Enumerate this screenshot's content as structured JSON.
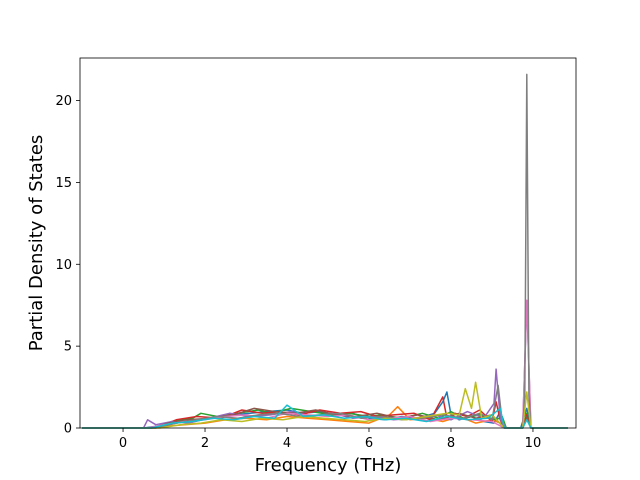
{
  "chart_data": {
    "type": "line",
    "title": "",
    "xlabel": "Frequency (THz)",
    "ylabel": "Partial Density of States",
    "xlim": [
      -1.05,
      11.05
    ],
    "ylim": [
      0,
      22.6
    ],
    "xticks": [
      0,
      2,
      4,
      6,
      8,
      10
    ],
    "yticks": [
      0,
      5,
      10,
      15,
      20
    ],
    "xtick_labels": [
      "0",
      "2",
      "4",
      "6",
      "8",
      "10"
    ],
    "ytick_labels": [
      "0",
      "5",
      "10",
      "15",
      "20"
    ],
    "grid": false,
    "legend": "none",
    "series": [
      {
        "color": "#1f77b4",
        "x": [
          -1.0,
          0.5,
          0.8,
          1.3,
          1.8,
          2.2,
          2.7,
          3.1,
          3.5,
          4.0,
          4.4,
          4.8,
          5.2,
          5.6,
          6.0,
          6.4,
          6.8,
          7.2,
          7.6,
          7.8,
          7.9,
          8.0,
          8.2,
          8.5,
          8.8,
          9.05,
          9.2,
          9.3,
          9.7,
          9.85,
          9.95,
          10.1,
          10.85
        ],
        "y": [
          0,
          0,
          0.1,
          0.3,
          0.5,
          0.6,
          0.8,
          0.9,
          1.0,
          1.1,
          0.9,
          1.0,
          0.8,
          0.9,
          0.6,
          0.5,
          0.7,
          0.6,
          0.9,
          1.6,
          2.2,
          0.8,
          0.5,
          0.7,
          0.4,
          0.3,
          1.0,
          0,
          0,
          1.2,
          0,
          0,
          0
        ]
      },
      {
        "color": "#ff7f0e",
        "x": [
          -1.0,
          0.6,
          1.0,
          1.5,
          2.0,
          2.5,
          3.0,
          3.5,
          4.0,
          4.5,
          5.0,
          5.5,
          6.0,
          6.5,
          6.7,
          7.0,
          7.4,
          7.8,
          8.2,
          8.6,
          9.0,
          9.2,
          9.3,
          9.75,
          9.85,
          9.95,
          10.85
        ],
        "y": [
          0,
          0,
          0.1,
          0.2,
          0.3,
          0.5,
          0.6,
          0.5,
          0.7,
          0.6,
          0.5,
          0.4,
          0.3,
          0.8,
          1.3,
          0.5,
          0.6,
          0.4,
          0.7,
          0.3,
          0.5,
          0.3,
          0,
          0,
          0.6,
          0,
          0
        ]
      },
      {
        "color": "#2ca02c",
        "x": [
          -1.0,
          0.7,
          1.2,
          1.7,
          1.9,
          2.3,
          2.8,
          3.3,
          3.6,
          4.1,
          4.6,
          5.1,
          5.5,
          6.0,
          6.3,
          6.8,
          7.3,
          7.7,
          8.0,
          8.3,
          8.7,
          9.1,
          9.25,
          9.35,
          9.75,
          9.85,
          9.95,
          10.85
        ],
        "y": [
          0,
          0,
          0.4,
          0.6,
          0.9,
          0.7,
          0.9,
          1.1,
          0.9,
          1.2,
          1.0,
          0.8,
          0.9,
          0.7,
          0.8,
          0.6,
          0.9,
          0.6,
          1.0,
          0.6,
          0.8,
          0.5,
          0.7,
          0,
          0,
          0.9,
          0,
          0
        ]
      },
      {
        "color": "#d62728",
        "x": [
          -1.0,
          0.8,
          1.3,
          1.8,
          2.4,
          2.9,
          3.4,
          3.8,
          4.3,
          4.8,
          5.3,
          5.8,
          6.2,
          6.6,
          7.1,
          7.5,
          7.8,
          7.9,
          8.1,
          8.4,
          8.7,
          9.0,
          9.1,
          9.2,
          9.3,
          9.75,
          9.85,
          9.95,
          10.85
        ],
        "y": [
          0,
          0,
          0.5,
          0.7,
          0.6,
          1.1,
          0.9,
          1.0,
          0.8,
          1.1,
          0.9,
          1.0,
          0.7,
          0.8,
          0.9,
          0.5,
          1.9,
          0.6,
          0.9,
          0.7,
          1.1,
          0.4,
          1.6,
          0.5,
          0,
          0,
          0.8,
          0,
          0
        ]
      },
      {
        "color": "#9467bd",
        "x": [
          -1.0,
          0.5,
          0.6,
          0.8,
          1.2,
          1.6,
          2.1,
          2.6,
          3.1,
          3.6,
          4.1,
          4.6,
          5.1,
          5.6,
          6.1,
          6.6,
          7.1,
          7.6,
          8.0,
          8.4,
          8.8,
          9.05,
          9.1,
          9.2,
          9.3,
          9.75,
          9.85,
          9.95,
          10.85
        ],
        "y": [
          0,
          0,
          0.5,
          0.2,
          0.4,
          0.3,
          0.6,
          0.9,
          0.7,
          0.8,
          1.0,
          0.7,
          0.9,
          0.6,
          0.7,
          0.5,
          0.6,
          0.8,
          0.5,
          1.0,
          0.6,
          1.5,
          3.6,
          0.6,
          0,
          0,
          7.7,
          0,
          0
        ]
      },
      {
        "color": "#8c564b",
        "x": [
          -1.0,
          0.7,
          1.1,
          1.6,
          2.1,
          2.7,
          3.2,
          3.7,
          4.2,
          4.7,
          5.2,
          5.7,
          6.2,
          6.7,
          7.2,
          7.7,
          8.2,
          8.6,
          9.0,
          9.3,
          9.75,
          9.85,
          9.95,
          10.85
        ],
        "y": [
          0,
          0,
          0.3,
          0.5,
          0.6,
          0.8,
          1.2,
          1.0,
          0.9,
          1.1,
          0.8,
          0.7,
          0.9,
          0.6,
          0.8,
          0.5,
          0.9,
          0.6,
          0.8,
          0,
          0,
          0.7,
          0,
          0
        ]
      },
      {
        "color": "#e377c2",
        "x": [
          -1.0,
          0.6,
          1.0,
          1.5,
          2.0,
          2.5,
          3.0,
          3.5,
          4.0,
          4.5,
          5.0,
          5.5,
          6.0,
          6.5,
          7.0,
          7.5,
          8.0,
          8.5,
          9.0,
          9.3,
          9.75,
          9.85,
          9.95,
          10.85
        ],
        "y": [
          0,
          0,
          0.2,
          0.4,
          0.5,
          0.7,
          0.8,
          0.6,
          0.9,
          0.8,
          0.7,
          0.8,
          0.5,
          0.6,
          0.7,
          0.4,
          0.6,
          0.5,
          0.4,
          0,
          0,
          7.8,
          0,
          0
        ]
      },
      {
        "color": "#7f7f7f",
        "x": [
          -1.0,
          0.8,
          1.3,
          1.8,
          2.3,
          2.8,
          3.3,
          3.8,
          4.3,
          4.8,
          5.3,
          5.8,
          6.3,
          6.8,
          7.3,
          7.8,
          8.3,
          8.7,
          9.0,
          9.15,
          9.25,
          9.35,
          9.75,
          9.8,
          9.85,
          9.9,
          9.95,
          10.85
        ],
        "y": [
          0,
          0,
          0.3,
          0.5,
          0.7,
          0.6,
          0.8,
          0.9,
          0.7,
          0.8,
          0.9,
          0.6,
          0.7,
          0.5,
          0.6,
          0.8,
          0.6,
          0.9,
          0.5,
          2.6,
          0.4,
          0,
          0,
          2.0,
          21.6,
          2.0,
          0,
          0
        ]
      },
      {
        "color": "#bcbd22",
        "x": [
          -1.0,
          0.9,
          1.4,
          1.9,
          2.4,
          2.9,
          3.4,
          3.9,
          4.4,
          4.9,
          5.4,
          5.9,
          6.4,
          6.9,
          7.4,
          7.9,
          8.2,
          8.35,
          8.5,
          8.6,
          8.75,
          9.0,
          9.3,
          9.75,
          9.85,
          9.95,
          10.85
        ],
        "y": [
          0,
          0,
          0.2,
          0.3,
          0.5,
          0.4,
          0.6,
          0.5,
          0.7,
          0.6,
          0.5,
          0.4,
          0.6,
          0.5,
          0.7,
          0.9,
          0.8,
          2.4,
          1.2,
          2.8,
          0.6,
          0.8,
          0,
          0,
          2.2,
          0,
          0
        ]
      },
      {
        "color": "#17becf",
        "x": [
          -1.0,
          0.7,
          1.2,
          1.7,
          2.2,
          2.7,
          3.2,
          3.7,
          4.0,
          4.4,
          4.9,
          5.4,
          5.9,
          6.4,
          6.9,
          7.4,
          7.9,
          8.4,
          8.9,
          9.2,
          9.3,
          9.75,
          9.85,
          9.95,
          10.85
        ],
        "y": [
          0,
          0,
          0.3,
          0.4,
          0.6,
          0.5,
          0.7,
          0.6,
          1.4,
          0.7,
          0.8,
          0.6,
          0.7,
          0.5,
          0.6,
          0.4,
          0.7,
          0.5,
          0.6,
          1.2,
          0,
          0,
          0.5,
          0,
          0
        ]
      }
    ]
  }
}
